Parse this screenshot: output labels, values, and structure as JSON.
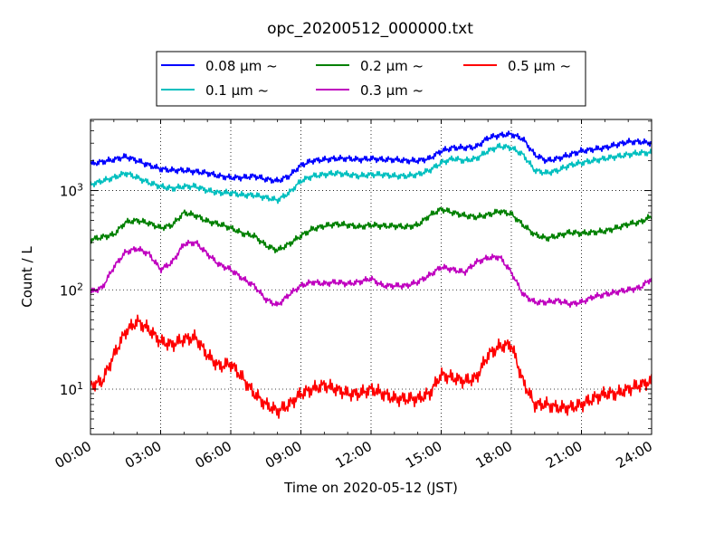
{
  "chart_data": {
    "type": "line",
    "title": "opc_20200512_000000.txt",
    "xlabel": "Time on 2020-05-12 (JST)",
    "ylabel": "Count / L",
    "xlim": [
      "00:00",
      "24:00"
    ],
    "ylim": [
      3.5,
      5200
    ],
    "yscale": "log",
    "grid": true,
    "legend_position": "top-center",
    "x_ticks": [
      "00:00",
      "03:00",
      "06:00",
      "09:00",
      "12:00",
      "15:00",
      "18:00",
      "21:00",
      "24:00"
    ],
    "y_ticks": [
      {
        "value": 10,
        "label": "10^1"
      },
      {
        "value": 100,
        "label": "10^2"
      },
      {
        "value": 1000,
        "label": "10^3"
      }
    ],
    "x_hours": [
      0,
      0.5,
      1,
      1.5,
      2,
      2.5,
      3,
      3.5,
      4,
      4.5,
      5,
      5.5,
      6,
      6.5,
      7,
      7.5,
      8,
      8.5,
      9,
      9.5,
      10,
      10.5,
      11,
      11.5,
      12,
      12.5,
      13,
      13.5,
      14,
      14.5,
      15,
      15.5,
      16,
      16.5,
      17,
      17.5,
      18,
      18.5,
      19,
      19.5,
      20,
      20.5,
      21,
      21.5,
      22,
      22.5,
      23,
      23.5,
      24
    ],
    "series": [
      {
        "name": "0.08 μm ~",
        "color": "#0000ff",
        "values": [
          1850,
          1950,
          2050,
          2200,
          2000,
          1800,
          1650,
          1600,
          1600,
          1550,
          1500,
          1400,
          1350,
          1350,
          1400,
          1300,
          1250,
          1400,
          1800,
          2000,
          2050,
          2100,
          2100,
          2050,
          2100,
          2050,
          2050,
          2000,
          2000,
          2100,
          2500,
          2700,
          2700,
          2750,
          3400,
          3600,
          3700,
          3300,
          2300,
          2000,
          2100,
          2300,
          2500,
          2600,
          2700,
          2900,
          3100,
          3100,
          3000
        ]
      },
      {
        "name": "0.1 μm ~",
        "color": "#00bfbf",
        "values": [
          1150,
          1250,
          1350,
          1500,
          1350,
          1200,
          1100,
          1050,
          1100,
          1100,
          1000,
          950,
          950,
          900,
          900,
          850,
          800,
          950,
          1250,
          1400,
          1450,
          1500,
          1450,
          1400,
          1450,
          1450,
          1400,
          1400,
          1450,
          1600,
          1900,
          2100,
          2000,
          2100,
          2500,
          2800,
          2700,
          2300,
          1600,
          1500,
          1600,
          1800,
          1900,
          2000,
          2100,
          2200,
          2300,
          2400,
          2400
        ]
      },
      {
        "name": "0.2 μm ~",
        "color": "#008000",
        "values": [
          320,
          340,
          360,
          480,
          500,
          470,
          420,
          450,
          600,
          560,
          490,
          460,
          420,
          370,
          350,
          280,
          250,
          290,
          350,
          410,
          440,
          460,
          450,
          430,
          450,
          440,
          440,
          430,
          450,
          560,
          650,
          600,
          560,
          540,
          570,
          620,
          580,
          450,
          360,
          330,
          350,
          380,
          370,
          380,
          390,
          420,
          460,
          480,
          550
        ]
      },
      {
        "name": "0.3 μm ~",
        "color": "#bf00bf",
        "values": [
          95,
          105,
          170,
          240,
          260,
          230,
          160,
          190,
          290,
          300,
          230,
          180,
          160,
          130,
          110,
          80,
          70,
          90,
          110,
          120,
          115,
          120,
          115,
          120,
          130,
          110,
          110,
          110,
          120,
          140,
          170,
          160,
          150,
          190,
          210,
          215,
          150,
          90,
          75,
          75,
          78,
          72,
          75,
          85,
          90,
          95,
          100,
          105,
          130
        ]
      },
      {
        "name": "0.5 μm ~",
        "color": "#ff0000",
        "values": [
          11,
          12,
          22,
          38,
          48,
          40,
          30,
          28,
          32,
          33,
          22,
          17,
          18,
          13,
          9,
          7,
          6,
          7,
          9,
          10,
          11,
          10,
          9,
          9,
          10,
          9,
          8,
          8,
          8,
          9,
          14,
          13,
          12,
          13,
          22,
          27,
          28,
          12,
          7,
          7,
          6.5,
          6.5,
          7,
          8,
          9,
          9,
          10,
          11,
          12
        ]
      }
    ]
  }
}
